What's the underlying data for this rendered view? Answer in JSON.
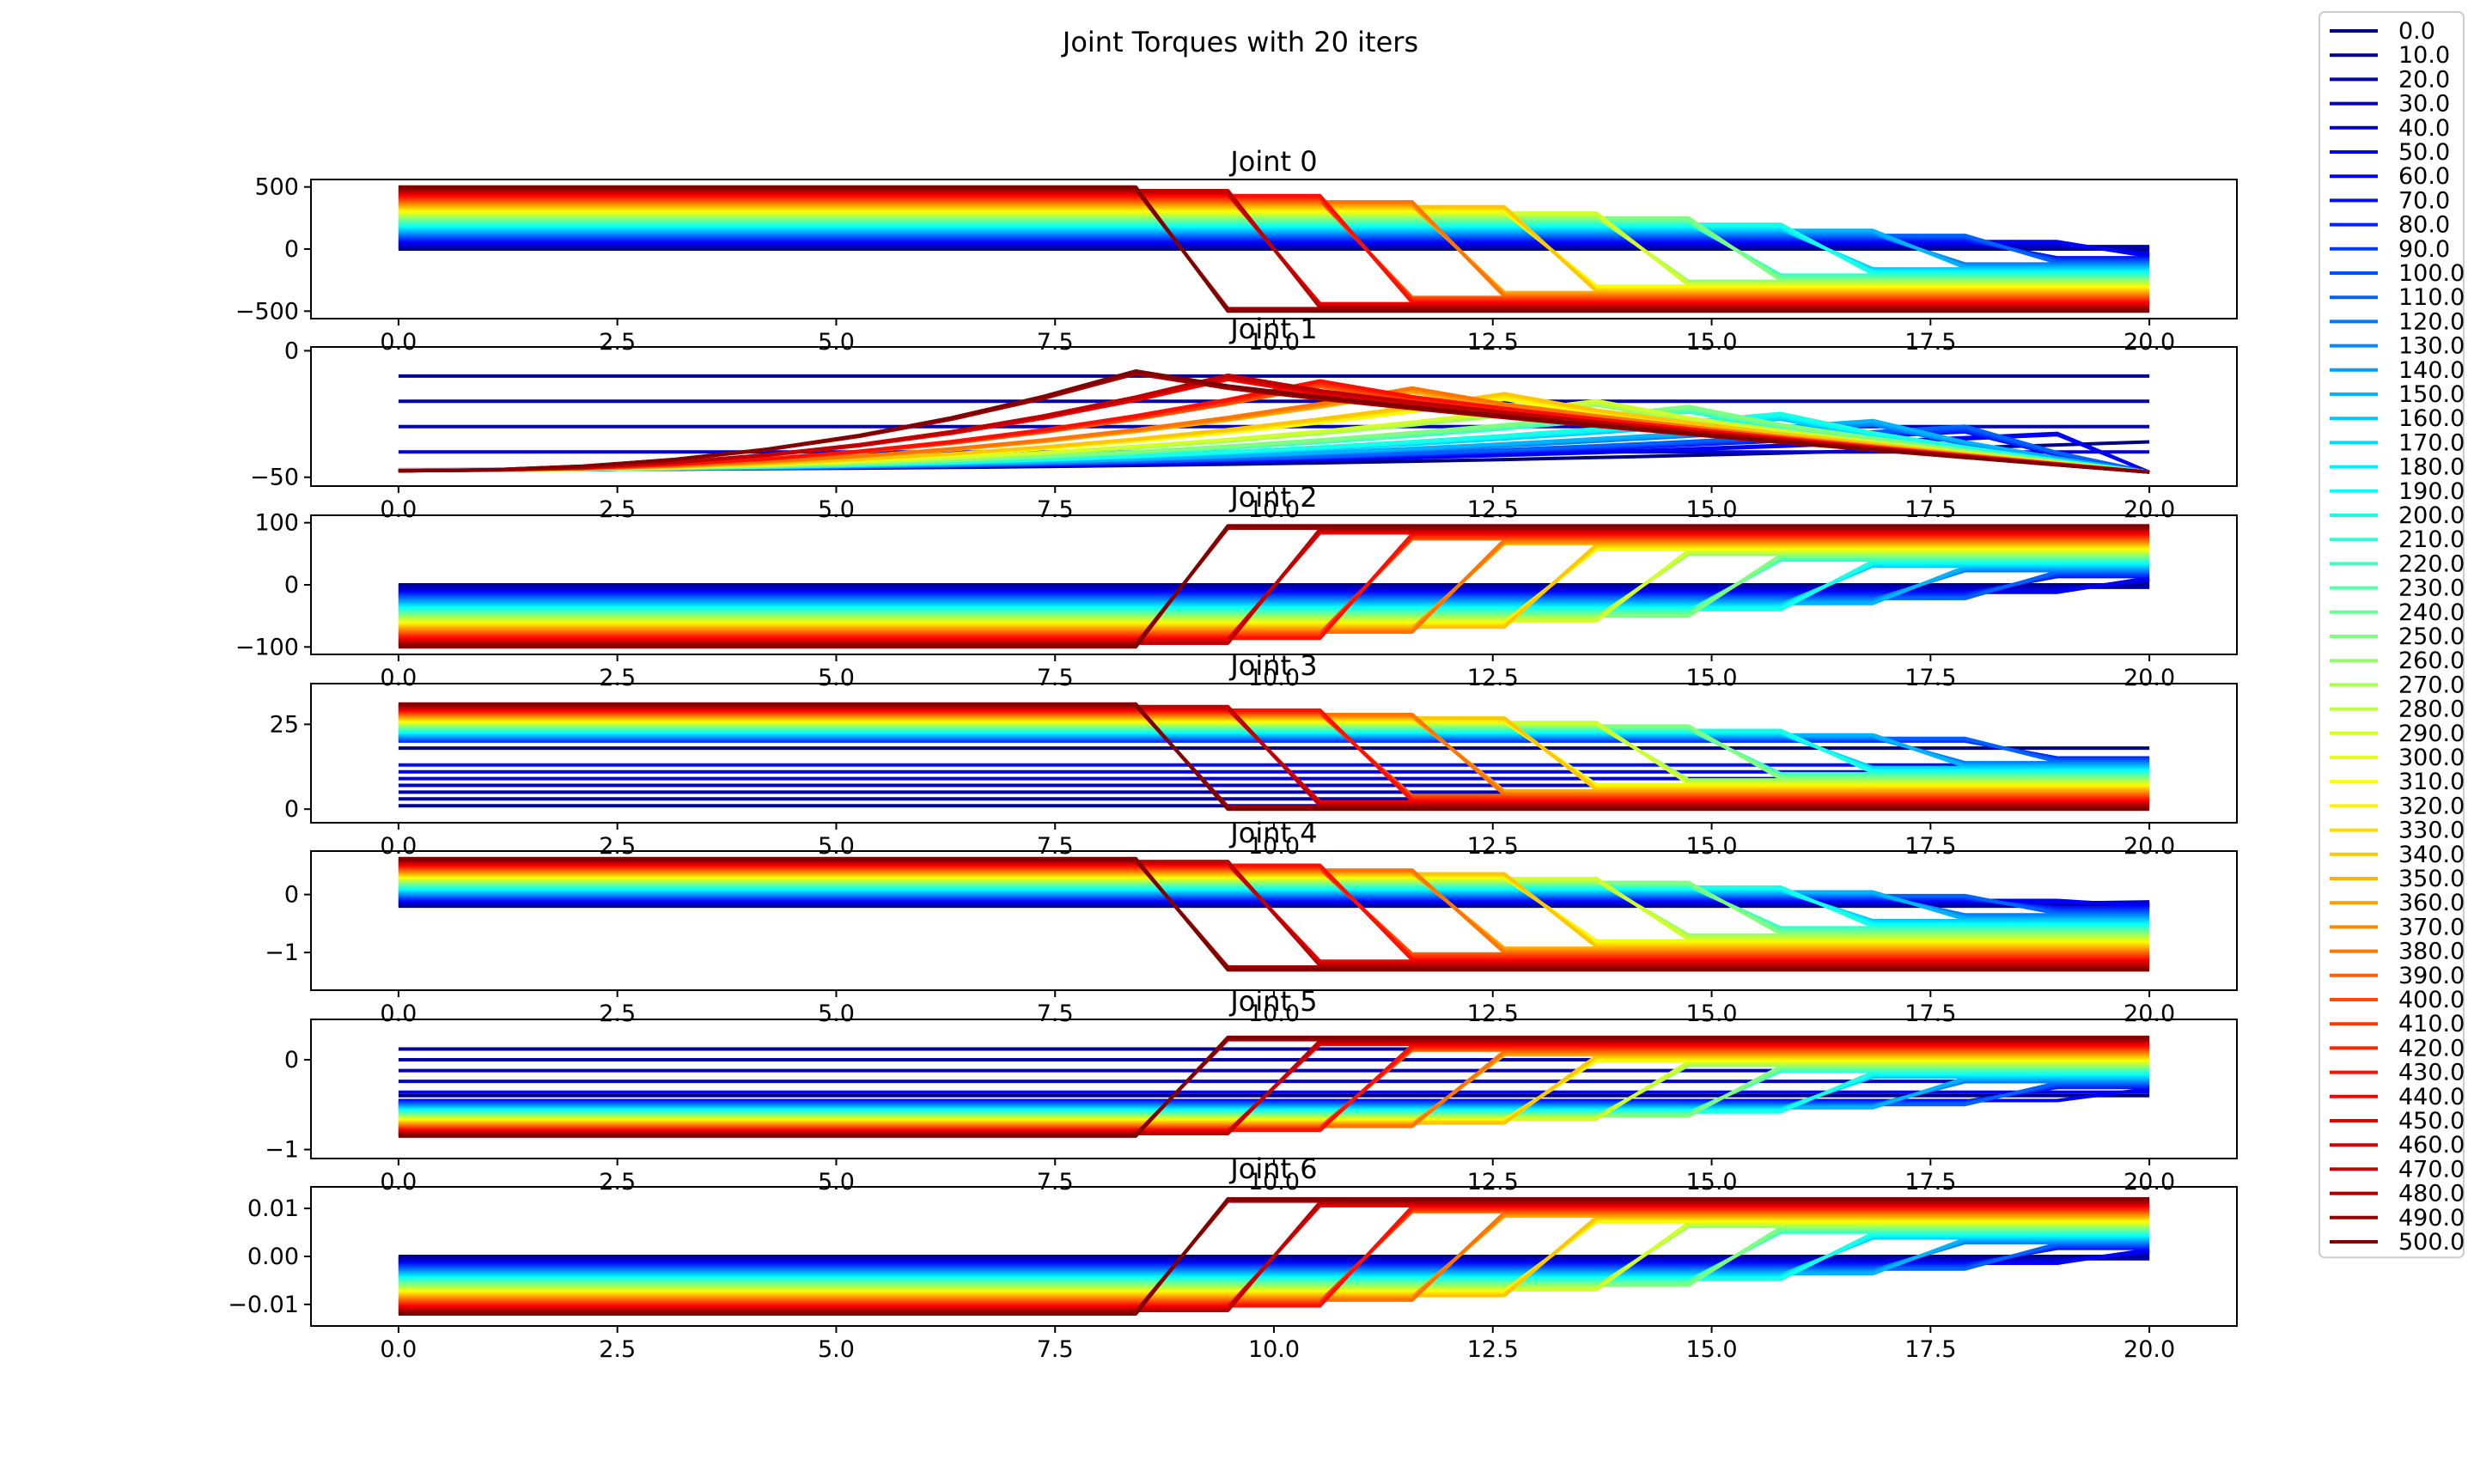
{
  "chart_data": {
    "type": "line",
    "title": "Joint Torques with 20 iters",
    "legend_placement": "upper right (outside plot area)",
    "colormap": "jet",
    "x": [
      0,
      1.0526,
      2.1053,
      3.1579,
      4.2105,
      5.2632,
      6.3158,
      7.3684,
      8.4211,
      9.4737,
      10.5263,
      11.5789,
      12.6316,
      13.6842,
      14.7368,
      15.7895,
      16.8421,
      17.8947,
      18.9474,
      20.0
    ],
    "xlim": [
      -1.0,
      21.0
    ],
    "xticks": [
      0.0,
      2.5,
      5.0,
      7.5,
      10.0,
      12.5,
      15.0,
      17.5,
      20.0
    ],
    "xtick_labels": [
      "0.0",
      "2.5",
      "5.0",
      "7.5",
      "10.0",
      "12.5",
      "15.0",
      "17.5",
      "20.0"
    ],
    "series_labels": [
      "0.0",
      "10.0",
      "20.0",
      "30.0",
      "40.0",
      "50.0",
      "60.0",
      "70.0",
      "80.0",
      "90.0",
      "100.0",
      "110.0",
      "120.0",
      "130.0",
      "140.0",
      "150.0",
      "160.0",
      "170.0",
      "180.0",
      "190.0",
      "200.0",
      "210.0",
      "220.0",
      "230.0",
      "240.0",
      "250.0",
      "260.0",
      "270.0",
      "280.0",
      "290.0",
      "300.0",
      "310.0",
      "320.0",
      "330.0",
      "340.0",
      "350.0",
      "360.0",
      "370.0",
      "380.0",
      "390.0",
      "400.0",
      "410.0",
      "420.0",
      "430.0",
      "440.0",
      "450.0",
      "460.0",
      "470.0",
      "480.0",
      "490.0",
      "500.0"
    ],
    "subplots": [
      {
        "title": "Joint 0",
        "ylim": [
          -560,
          560
        ],
        "yticks": [
          500,
          0,
          -500
        ],
        "ytick_labels": [
          "500",
          "0",
          "−500"
        ],
        "series_formula": {
          "start_value_per_label_unit": 1.0,
          "after_switch_value_per_label_unit": -1.0,
          "end_offset": 0
        },
        "series_formula_note": "start_value = 1.0 * label; final_value = -1.0 * label"
      },
      {
        "title": "Joint 1",
        "ylim": [
          -53.5,
          1.5
        ],
        "yticks": [
          0,
          -50
        ],
        "ytick_labels": [
          "0",
          "−50"
        ],
        "low_series_levels": [
          -10,
          -20,
          -30,
          -40
        ],
        "series_formula": {
          "start": -47,
          "peak": -8,
          "end": -48
        },
        "series_formula_note": "rise toward peak near switch then decay to end"
      },
      {
        "title": "Joint 2",
        "ylim": [
          -112,
          112
        ],
        "yticks": [
          100,
          0,
          -100
        ],
        "ytick_labels": [
          "100",
          "0",
          "−100"
        ],
        "series_formula": {
          "start_value_per_label_unit": -0.2,
          "after_switch_value_per_label_unit": 0.19,
          "end_offset": 0
        },
        "series_formula_note": "start_value = -0.2 * label; final_value = 0.19 * label"
      },
      {
        "title": "Joint 3",
        "ylim": [
          -4,
          37
        ],
        "yticks": [
          25,
          0
        ],
        "ytick_labels": [
          "25",
          "0"
        ],
        "low_series_levels": [
          1,
          3,
          5,
          7,
          9,
          11,
          13
        ],
        "series_formula": {
          "start_at_0": 18,
          "start_at_500": 31,
          "end_at_0": 18,
          "end_at_500": 0
        },
        "series_formula_note": "interpolate linearly by label"
      },
      {
        "title": "Joint 4",
        "ylim": [
          -1.65,
          0.75
        ],
        "yticks": [
          0,
          -1
        ],
        "ytick_labels": [
          "0",
          "−1"
        ],
        "series_formula": {
          "start_at_0": -0.2,
          "start_at_500": 0.62,
          "end_at_0": -0.05,
          "end_at_500": -1.3
        },
        "series_formula_note": "interpolate linearly by label"
      },
      {
        "title": "Joint 5",
        "ylim": [
          -1.1,
          0.45
        ],
        "yticks": [
          0,
          -1
        ],
        "ytick_labels": [
          "0",
          "−1"
        ],
        "low_series_levels": [
          0.12,
          0.0,
          -0.12,
          -0.24,
          -0.36
        ],
        "series_formula": {
          "start_at_0": -0.4,
          "start_at_500": -0.85,
          "end_at_0": -0.4,
          "end_at_500": 0.25
        },
        "series_formula_note": "interpolate linearly by label"
      },
      {
        "title": "Joint 6",
        "ylim": [
          -0.0145,
          0.0145
        ],
        "yticks": [
          0.01,
          0.0,
          -0.01
        ],
        "ytick_labels": [
          "0.01",
          "0.00",
          "−0.01"
        ],
        "series_formula": {
          "start_at_0": 0.0,
          "start_at_500": -0.012,
          "end_at_0": 0.0,
          "end_at_500": 0.012
        },
        "series_formula_note": "interpolate linearly by label"
      }
    ]
  }
}
